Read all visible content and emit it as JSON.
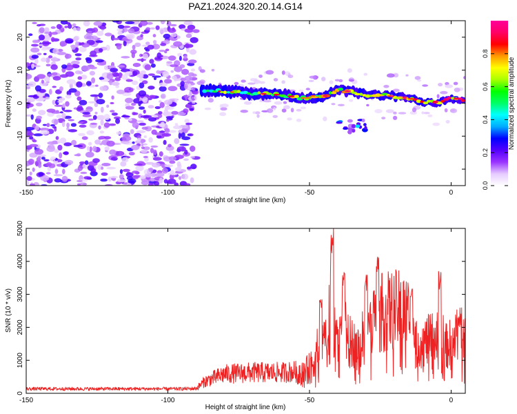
{
  "title": "PAZ1.2024.320.20.14.G14",
  "chart_data": [
    {
      "type": "heatmap",
      "xlabel": "Height of straight line (km)",
      "ylabel": "Frequency (Hz)",
      "xlim": [
        -150,
        5
      ],
      "ylim": [
        -25,
        25
      ],
      "x_ticks": [
        -150,
        -100,
        -50,
        0
      ],
      "y_ticks": [
        -20,
        -10,
        0,
        10,
        20
      ],
      "grid": false,
      "colorbar": {
        "label": "Normalized spectral amplitude",
        "range": [
          0,
          1
        ],
        "ticks": [
          0,
          0.2,
          0.4,
          0.6,
          0.8
        ],
        "colormap": [
          "#ffffff",
          "#e6ccff",
          "#9933ff",
          "#5500ff",
          "#0000ff",
          "#00aaff",
          "#00ffff",
          "#00ff66",
          "#00ff00",
          "#aaff00",
          "#ffff00",
          "#ff9900",
          "#ff0000",
          "#ff0066",
          "#ff0099"
        ]
      },
      "noise_region_x": [
        -150,
        -90
      ],
      "ridge": [
        {
          "x": -88,
          "y": 4
        },
        {
          "x": -80,
          "y": 3.5
        },
        {
          "x": -70,
          "y": 3
        },
        {
          "x": -60,
          "y": 2.5
        },
        {
          "x": -52,
          "y": 1.5
        },
        {
          "x": -45,
          "y": 2
        },
        {
          "x": -40,
          "y": 4
        },
        {
          "x": -35,
          "y": 3.5
        },
        {
          "x": -30,
          "y": 2.5
        },
        {
          "x": -25,
          "y": 2.5
        },
        {
          "x": -20,
          "y": 2
        },
        {
          "x": -15,
          "y": 1.5
        },
        {
          "x": -10,
          "y": 0.5
        },
        {
          "x": -5,
          "y": 0.2
        },
        {
          "x": 0,
          "y": 1.5
        },
        {
          "x": 5,
          "y": 1
        }
      ],
      "secondary_feature": {
        "x_range": [
          -40,
          -30
        ],
        "y_range": [
          -9,
          -5
        ]
      }
    },
    {
      "type": "line",
      "xlabel": "Height of straight line (km)",
      "ylabel": "SNR (10 * v/v)",
      "xlim": [
        -150,
        5
      ],
      "ylim": [
        0,
        5000
      ],
      "x_ticks": [
        -150,
        -100,
        -50,
        0
      ],
      "y_ticks": [
        0,
        1000,
        2000,
        3000,
        4000,
        5000
      ],
      "grid": false,
      "color": "#ee2222",
      "envelope": [
        {
          "x": -150,
          "y": 150
        },
        {
          "x": -120,
          "y": 150
        },
        {
          "x": -95,
          "y": 150
        },
        {
          "x": -90,
          "y": 160
        },
        {
          "x": -87,
          "y": 400
        },
        {
          "x": -80,
          "y": 650
        },
        {
          "x": -70,
          "y": 700
        },
        {
          "x": -60,
          "y": 700
        },
        {
          "x": -52,
          "y": 750
        },
        {
          "x": -48,
          "y": 1100
        },
        {
          "x": -45,
          "y": 1600
        },
        {
          "x": -42,
          "y": 2100
        },
        {
          "x": -40,
          "y": 1700
        },
        {
          "x": -37,
          "y": 1800
        },
        {
          "x": -33,
          "y": 1600
        },
        {
          "x": -30,
          "y": 1500
        },
        {
          "x": -28,
          "y": 2300
        },
        {
          "x": -25,
          "y": 2700
        },
        {
          "x": -20,
          "y": 2800
        },
        {
          "x": -15,
          "y": 2700
        },
        {
          "x": -13,
          "y": 1600
        },
        {
          "x": -10,
          "y": 1700
        },
        {
          "x": -5,
          "y": 1900
        },
        {
          "x": -3,
          "y": 1500
        },
        {
          "x": 0,
          "y": 1700
        },
        {
          "x": 3,
          "y": 2000
        },
        {
          "x": 5,
          "y": 1900
        }
      ],
      "peaks": [
        {
          "x": -42,
          "y": 5000
        },
        {
          "x": -38,
          "y": 3700
        },
        {
          "x": -46,
          "y": 2900
        },
        {
          "x": -30,
          "y": 3600
        },
        {
          "x": -26,
          "y": 4200
        },
        {
          "x": -14,
          "y": 3200
        },
        {
          "x": -4,
          "y": 3700
        },
        {
          "x": 3,
          "y": 2300
        }
      ]
    }
  ]
}
